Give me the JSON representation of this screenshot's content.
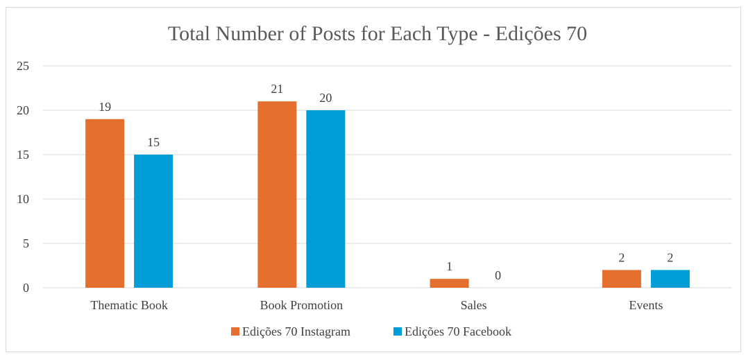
{
  "chart_data": {
    "type": "bar",
    "title": "Total Number of Posts for Each Type - Edições 70",
    "categories": [
      "Thematic Book",
      "Book Promotion",
      "Sales",
      "Events"
    ],
    "series": [
      {
        "name": "Edições 70 Instagram",
        "values": [
          19,
          21,
          1,
          2
        ],
        "color": "#E46F2F"
      },
      {
        "name": "Edições 70 Facebook",
        "values": [
          15,
          20,
          0,
          2
        ],
        "color": "#009DD6"
      }
    ],
    "ylim": [
      0,
      25
    ],
    "yticks": [
      0,
      5,
      10,
      15,
      20,
      25
    ],
    "grid": true,
    "data_labels": true,
    "legend_position": "bottom"
  }
}
